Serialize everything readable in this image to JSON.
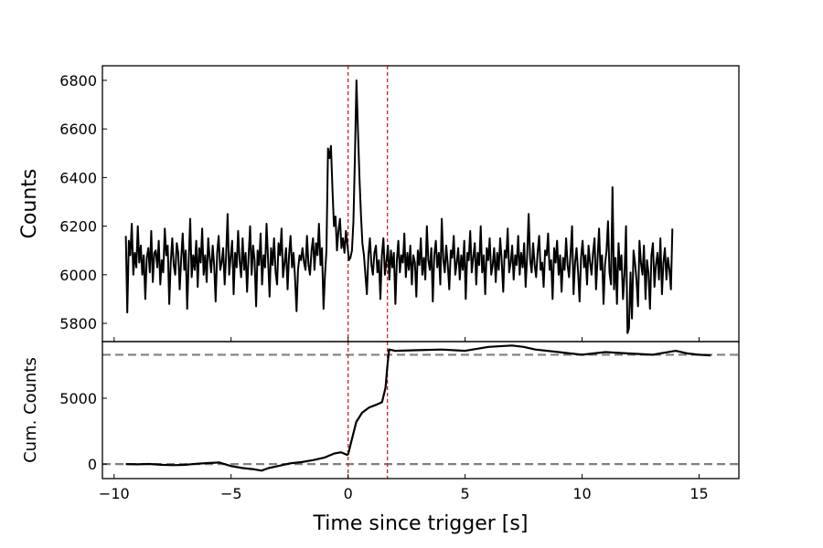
{
  "chart_data": [
    {
      "panel": "top",
      "type": "line",
      "ylabel": "Counts",
      "xlim": [
        -10.5,
        16.7
      ],
      "ylim": [
        5725,
        6860
      ],
      "yticks": [
        5800,
        6000,
        6200,
        6400,
        6600,
        6800
      ],
      "ytick_labels": [
        "5800",
        "6000",
        "6200",
        "6400",
        "6600",
        "6800"
      ],
      "xticks": [
        -10,
        -5,
        0,
        5,
        10,
        15
      ],
      "vlines": [
        0.0,
        1.68
      ],
      "vline_color": "#cc2222",
      "line_color": "#000000",
      "series": [
        {
          "x_start": -9.5,
          "x_step": 0.064,
          "values": [
            6160,
            5845,
            6140,
            6080,
            6210,
            6000,
            6090,
            6030,
            6200,
            6050,
            6120,
            6000,
            6080,
            5900,
            6070,
            6110,
            6010,
            6180,
            5970,
            6090,
            6100,
            6030,
            6140,
            5960,
            6060,
            6010,
            6190,
            6080,
            6120,
            5880,
            6050,
            6150,
            6040,
            6000,
            6130,
            6090,
            5940,
            6070,
            6170,
            6020,
            6100,
            5860,
            6060,
            6230,
            5990,
            6080,
            6020,
            6140,
            5950,
            6110,
            6050,
            6190,
            6000,
            6080,
            5970,
            6150,
            6070,
            6010,
            6120,
            6040,
            5890,
            6090,
            6160,
            6020,
            6050,
            6110,
            5960,
            6080,
            6250,
            6000,
            6070,
            6140,
            5920,
            6090,
            6030,
            6180,
            6060,
            5990,
            6150,
            6020,
            6090,
            5930,
            6080,
            6200,
            6000,
            6120,
            6060,
            5870,
            6100,
            6040,
            6170,
            5960,
            6080,
            6030,
            6210,
            6060,
            5910,
            6110,
            6040,
            6150,
            6010,
            5960,
            6130,
            6080,
            6190,
            5990,
            6050,
            6110,
            5940,
            6080,
            6160,
            6030,
            6090,
            5990,
            5850,
            6020,
            6080,
            6060,
            6110,
            6050,
            6020,
            6160,
            6040,
            6000,
            6100,
            6150,
            6020,
            6130,
            6080,
            6210,
            6040,
            6110,
            5860,
            6000,
            6100,
            6520,
            6480,
            6530,
            6350,
            6200,
            6240,
            6100,
            6180,
            6230,
            6110,
            6150,
            6090,
            6180,
            6120,
            6060,
            6070,
            6100,
            6220,
            6480,
            6800,
            6600,
            6400,
            6250,
            6130,
            6080,
            6000,
            5920,
            6080,
            6150,
            6040,
            6000,
            6090,
            6120,
            6010,
            6060,
            5900,
            6080,
            6150,
            6000,
            6050,
            6120,
            5980,
            6100,
            6030,
            6090,
            5880,
            6060,
            6140,
            6010,
            6080,
            6050,
            6170,
            5990,
            6090,
            6020,
            6120,
            5960,
            6080,
            6050,
            5910,
            6100,
            6040,
            6150,
            6000,
            6070,
            5980,
            6200,
            6060,
            6020,
            6110,
            5890,
            6080,
            6140,
            6030,
            6090,
            5960,
            6230,
            6060,
            6010,
            6120,
            6040,
            5940,
            6100,
            6070,
            6160,
            6000,
            6050,
            6110,
            5980,
            6080,
            6020,
            6140,
            5900,
            6090,
            6060,
            6180,
            6010,
            6070,
            6130,
            5960,
            6090,
            6040,
            6200,
            6010,
            6080,
            5920,
            6110,
            6060,
            6150,
            6000,
            6040,
            6110,
            5970,
            6090,
            6020,
            6150,
            6060,
            5930,
            6100,
            6070,
            6190,
            6010,
            6050,
            6120,
            5980,
            6080,
            6040,
            6160,
            6000,
            6090,
            6030,
            6130,
            5950,
            6080,
            6250,
            6060,
            6010,
            6130,
            6040,
            5990,
            6090,
            6160,
            6020,
            6050,
            5950,
            6100,
            6080,
            6170,
            6020,
            6060,
            5900,
            6110,
            6050,
            6140,
            6000,
            6080,
            5930,
            6070,
            6020,
            6150,
            6040,
            5990,
            6090,
            6200,
            5920,
            6050,
            6110,
            6010,
            5890,
            6070,
            6140,
            6030,
            6080,
            5960,
            6120,
            6050,
            6000,
            6090,
            6150,
            5940,
            6060,
            6190,
            6020,
            6080,
            5880,
            6040,
            6100,
            6220,
            6010,
            5960,
            6360,
            5940,
            6070,
            5880,
            6130,
            6020,
            6080,
            5900,
            6000,
            6200,
            5760,
            5780,
            6010,
            5820,
            6100,
            6050,
            5980,
            5870,
            6140,
            6050,
            6000,
            6120,
            5900,
            6060,
            6010,
            5860,
            6080,
            6130,
            5950,
            6040,
            6090,
            5980,
            6150,
            5920,
            6050,
            6110,
            5980,
            6070,
            6020,
            5940,
            6190
          ]
        }
      ]
    },
    {
      "panel": "bottom",
      "type": "line",
      "xlabel": "Time since trigger [s]",
      "ylabel": "Cum. Counts",
      "xlim": [
        -10.5,
        16.7
      ],
      "ylim": [
        -1100,
        9300
      ],
      "yticks": [
        0,
        5000
      ],
      "ytick_labels": [
        "0",
        "5000"
      ],
      "xticks": [
        -10,
        -5,
        0,
        5,
        10,
        15
      ],
      "xtick_labels": [
        "−10",
        "−5",
        "0",
        "5",
        "10",
        "15"
      ],
      "hlines": [
        0,
        8300
      ],
      "hline_color": "#808080",
      "vlines": [
        0.0,
        1.68
      ],
      "vline_color": "#cc2222",
      "line_color": "#000000",
      "series": [
        {
          "x": [
            -9.5,
            -9.0,
            -8.5,
            -8.0,
            -7.5,
            -7.0,
            -6.5,
            -6.0,
            -5.5,
            -5.0,
            -4.5,
            -4.0,
            -3.7,
            -3.4,
            -3.0,
            -2.5,
            -2.0,
            -1.5,
            -1.0,
            -0.6,
            -0.3,
            -0.05,
            0.0,
            0.15,
            0.35,
            0.6,
            0.9,
            1.2,
            1.45,
            1.6,
            1.68,
            1.75,
            2.0,
            3.0,
            4.0,
            5.0,
            6.0,
            7.0,
            7.5,
            8.0,
            9.0,
            10.0,
            11.0,
            12.0,
            13.0,
            14.0,
            14.5,
            15.0,
            15.5
          ],
          "y": [
            0,
            -20,
            10,
            -50,
            -80,
            -60,
            20,
            80,
            120,
            -150,
            -300,
            -400,
            -500,
            -300,
            -150,
            50,
            150,
            300,
            500,
            800,
            900,
            700,
            750,
            1800,
            3200,
            3900,
            4300,
            4500,
            4700,
            5800,
            7500,
            8700,
            8600,
            8650,
            8700,
            8600,
            8900,
            9000,
            8900,
            8700,
            8500,
            8300,
            8500,
            8400,
            8300,
            8600,
            8400,
            8300,
            8250
          ]
        }
      ]
    }
  ]
}
